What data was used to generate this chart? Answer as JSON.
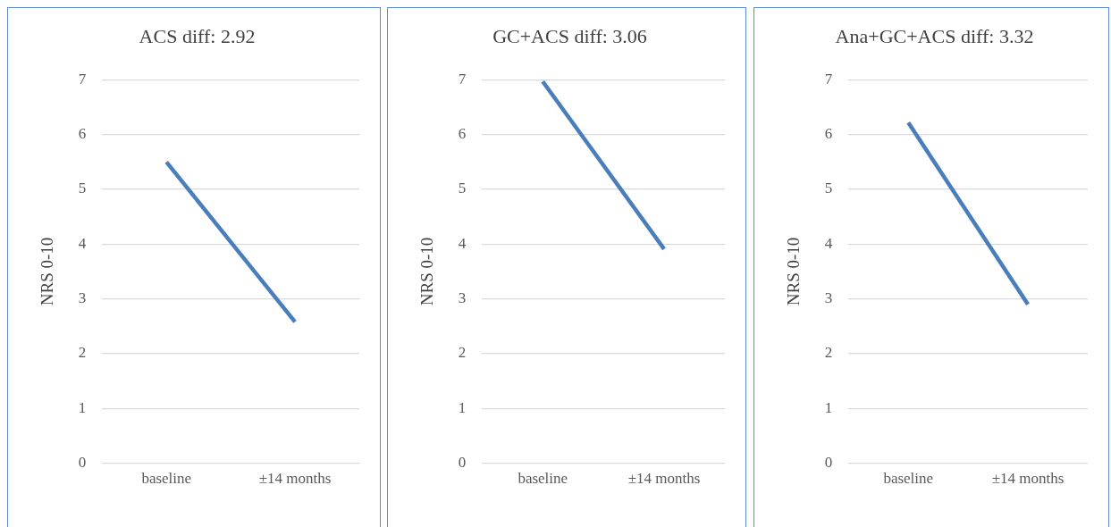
{
  "chart_data": [
    {
      "type": "line",
      "title": "ACS diff: 2.92",
      "ylabel": "NRS 0-10",
      "categories": [
        "baseline",
        "±14 months"
      ],
      "series": [
        {
          "color": "#4a7ebb",
          "values": [
            5.5,
            2.58
          ]
        }
      ],
      "ylim": [
        0,
        7
      ],
      "yticks": [
        0,
        1,
        2,
        3,
        4,
        5,
        6,
        7
      ],
      "grid": "y",
      "legend": false,
      "marker": "none"
    },
    {
      "type": "line",
      "title": "GC+ACS diff: 3.06",
      "ylabel": "NRS 0-10",
      "categories": [
        "baseline",
        "±14 months"
      ],
      "series": [
        {
          "color": "#4a7ebb",
          "values": [
            6.97,
            3.91
          ]
        }
      ],
      "ylim": [
        0,
        7
      ],
      "yticks": [
        0,
        1,
        2,
        3,
        4,
        5,
        6,
        7
      ],
      "grid": "y",
      "legend": false,
      "marker": "none"
    },
    {
      "type": "line",
      "title": "Ana+GC+ACS diff: 3.32",
      "ylabel": "NRS 0-10",
      "categories": [
        "baseline",
        "±14 months"
      ],
      "series": [
        {
          "color": "#4a7ebb",
          "values": [
            6.22,
            2.9
          ]
        }
      ],
      "ylim": [
        0,
        7
      ],
      "yticks": [
        0,
        1,
        2,
        3,
        4,
        5,
        6,
        7
      ],
      "grid": "y",
      "legend": false,
      "marker": "none"
    }
  ]
}
